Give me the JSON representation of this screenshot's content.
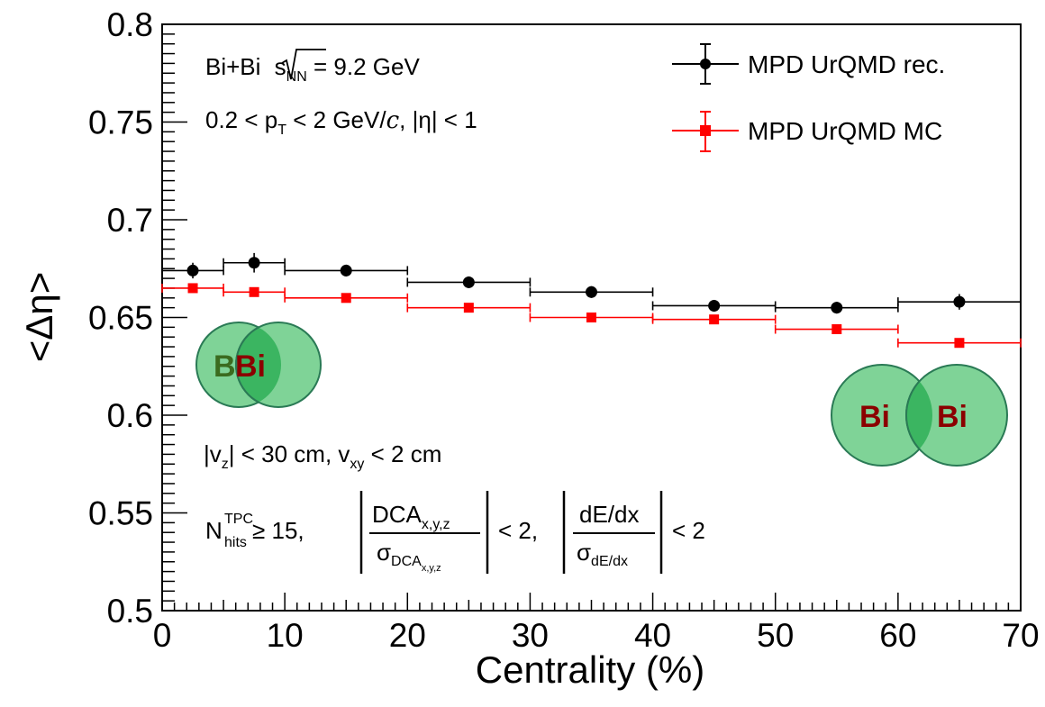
{
  "chart_data": {
    "type": "scatter",
    "xlabel": "Centrality (%)",
    "ylabel": "<Δη>",
    "xlim": [
      0,
      70
    ],
    "ylim": [
      0.5,
      0.8
    ],
    "x_ticks": [
      "0",
      "10",
      "20",
      "30",
      "40",
      "50",
      "60",
      "70"
    ],
    "y_ticks": [
      "0.5",
      "0.55",
      "0.6",
      "0.65",
      "0.7",
      "0.75",
      "0.8"
    ],
    "legend_position": "top-right",
    "grid": false,
    "series": [
      {
        "name": "MPD UrQMD rec.",
        "color": "#000000",
        "marker": "circle",
        "points": [
          {
            "x": 2.5,
            "xlo": 0,
            "xhi": 5,
            "y": 0.674,
            "yerr": 0.004
          },
          {
            "x": 7.5,
            "xlo": 5,
            "xhi": 10,
            "y": 0.678,
            "yerr": 0.005
          },
          {
            "x": 15,
            "xlo": 10,
            "xhi": 20,
            "y": 0.674,
            "yerr": 0.003
          },
          {
            "x": 25,
            "xlo": 20,
            "xhi": 30,
            "y": 0.668,
            "yerr": 0.003
          },
          {
            "x": 35,
            "xlo": 30,
            "xhi": 40,
            "y": 0.663,
            "yerr": 0.003
          },
          {
            "x": 45,
            "xlo": 40,
            "xhi": 50,
            "y": 0.656,
            "yerr": 0.003
          },
          {
            "x": 55,
            "xlo": 50,
            "xhi": 60,
            "y": 0.655,
            "yerr": 0.003
          },
          {
            "x": 65,
            "xlo": 60,
            "xhi": 70,
            "y": 0.658,
            "yerr": 0.004
          }
        ]
      },
      {
        "name": "MPD UrQMD MC",
        "color": "#ff0000",
        "marker": "square",
        "points": [
          {
            "x": 2.5,
            "xlo": 0,
            "xhi": 5,
            "y": 0.665,
            "yerr": 0.0015
          },
          {
            "x": 7.5,
            "xlo": 5,
            "xhi": 10,
            "y": 0.663,
            "yerr": 0.0015
          },
          {
            "x": 15,
            "xlo": 10,
            "xhi": 20,
            "y": 0.66,
            "yerr": 0.0015
          },
          {
            "x": 25,
            "xlo": 20,
            "xhi": 30,
            "y": 0.655,
            "yerr": 0.0015
          },
          {
            "x": 35,
            "xlo": 30,
            "xhi": 40,
            "y": 0.65,
            "yerr": 0.0015
          },
          {
            "x": 45,
            "xlo": 40,
            "xhi": 50,
            "y": 0.649,
            "yerr": 0.0015
          },
          {
            "x": 55,
            "xlo": 50,
            "xhi": 60,
            "y": 0.644,
            "yerr": 0.0015
          },
          {
            "x": 65,
            "xlo": 60,
            "xhi": 70,
            "y": 0.637,
            "yerr": 0.0015
          }
        ]
      }
    ],
    "annotations": {
      "system": {
        "main": "Bi+Bi ",
        "sqrt_s": "s",
        "sub": "NN",
        "rest": " = 9.2 GeV"
      },
      "pt_cut": {
        "prefix": "0.2 < p",
        "sub": "T",
        "rest1": " < 2 GeV/",
        "c": "c",
        "rest2": ", |η| < 1"
      },
      "vertex_cut": {
        "bar": "|",
        "v": "v",
        "sub_z": "z",
        "rest1": "| < 30 cm, v",
        "sub_xy": "xy",
        "rest2": " < 2 cm"
      },
      "track_cut": {
        "n": "N",
        "sup": "TPC",
        "sub": "hits",
        "ge": " ≥ 15,",
        "frac1_num": "DCA",
        "frac1_num_sub": "x,y,z",
        "frac1_den": "σ",
        "frac1_den_sub": "DCA",
        "frac1_den_subsub": "x,y,z",
        "lt1": "< 2,",
        "frac2_num": "dE/dx",
        "frac2_den": "σ",
        "frac2_den_sub": "dE/dx",
        "lt2": "< 2"
      }
    },
    "nuclei_central": {
      "left": "B",
      "right": "Bi"
    },
    "nuclei_peripheral": {
      "left": "Bi",
      "right": "Bi"
    },
    "colors": {
      "circle_fill": "#7fd397",
      "circle_overlap": "#3bb561",
      "circle_stroke": "#2a7a55",
      "label_central_left": "#3b6b1f",
      "label_dark_red": "#8b0000"
    }
  }
}
